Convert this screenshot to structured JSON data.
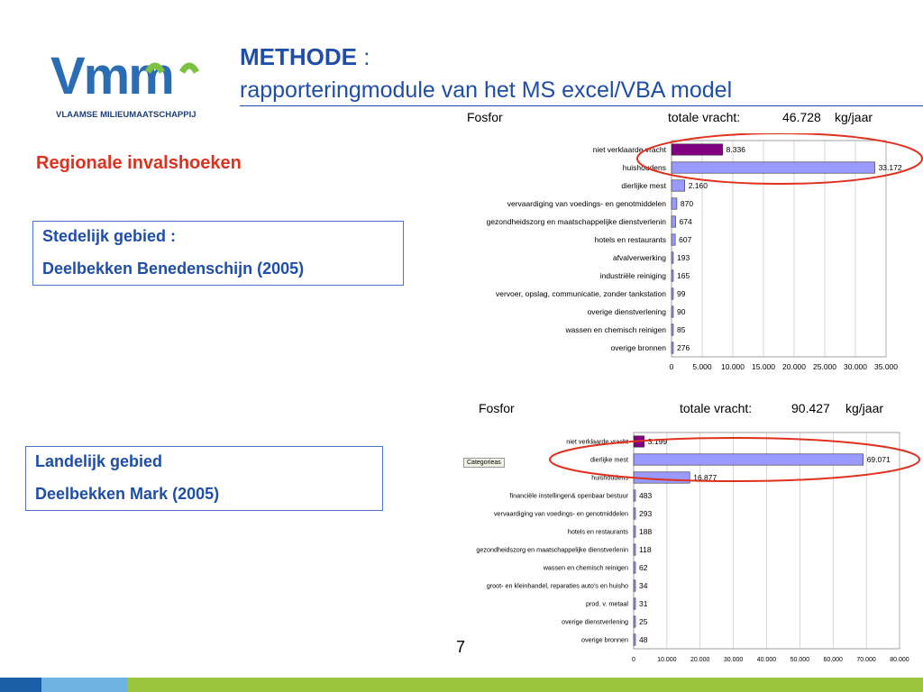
{
  "logo": {
    "wordmark": "Vmm",
    "subtitle": "VLAAMSE MILIEUMAATSCHAPPIJ"
  },
  "title": {
    "main": "METHODE",
    "colon": " :",
    "sub": "rapporteringmodule van het MS excel/VBA model"
  },
  "section_heading": "Regionale invalshoeken",
  "box_urban": {
    "line1": "Stedelijk gebied :",
    "line2": "Deelbekken Benedenschijn (2005)"
  },
  "box_rural": {
    "line1": "Landelijk gebied",
    "line2": " Deelbekken Mark (2005)"
  },
  "chart1_header": {
    "name": "Fosfor",
    "label": "totale vracht:",
    "value": "46.728",
    "unit": "kg/jaar"
  },
  "chart2_header": {
    "name": "Fosfor",
    "label": "totale vracht:",
    "value": "90.427",
    "unit": "kg/jaar"
  },
  "chart2_tag": "Categorieas",
  "page_number": "7",
  "colors": {
    "title_blue": "#1f4ea8",
    "heading_red": "#e0301e",
    "bar_default": "#9999ff",
    "bar_highlight": "#800080",
    "ellipse": "#e0301e"
  },
  "chart_data": [
    {
      "type": "bar",
      "orientation": "horizontal",
      "categories": [
        "niet verklaarde vracht",
        "huishoudens",
        "dierlijke mest",
        "vervaardiging van voedings- en genotmiddelen",
        "gezondheidszorg en maatschappelijke dienstverlenin",
        "hotels en restaurants",
        "afvalverwerking",
        "industriële reiniging",
        "vervoer, opslag, communicatie, zonder tankstation",
        "overige dienstverlening",
        "wassen en chemisch reinigen",
        "overige bronnen"
      ],
      "values": [
        8336,
        33172,
        2160,
        870,
        674,
        607,
        193,
        165,
        99,
        90,
        85,
        276
      ],
      "value_labels": [
        "8.336",
        "33.172",
        "2.160",
        "870",
        "674",
        "607",
        "193",
        "165",
        "99",
        "90",
        "85",
        "276"
      ],
      "xlim": [
        0,
        35000
      ],
      "x_ticks": [
        "0",
        "5.000",
        "10.000",
        "15.000",
        "20.000",
        "25.000",
        "30.000",
        "35.000"
      ],
      "highlight_index": 0,
      "circled_categories": [
        "niet verklaarde vracht",
        "huishoudens"
      ],
      "grid": true
    },
    {
      "type": "bar",
      "orientation": "horizontal",
      "categories": [
        "niet verklaarde vracht",
        "dierlijke mest",
        "huishoudens",
        "financiële instellingen& openbaar bestuur",
        "vervaardiging van voedings- en genotmiddelen",
        "hotels en restaurants",
        "gezondheidszorg en maatschappelijke dienstverlenin",
        "wassen en chemisch reinigen",
        "groot- en kleinhandel, reparaties auto's en huisho",
        "prod. v. metaal",
        "overige dienstverlening",
        "overige bronnen"
      ],
      "values": [
        3199,
        69071,
        16877,
        483,
        293,
        188,
        118,
        62,
        34,
        31,
        25,
        48
      ],
      "value_labels": [
        "3.199",
        "69.071",
        "16.877",
        "483",
        "293",
        "188",
        "118",
        "62",
        "34",
        "31",
        "25",
        "48"
      ],
      "xlim": [
        0,
        80000
      ],
      "x_ticks": [
        "0",
        "10.000",
        "20.000",
        "30.000",
        "40.000",
        "50.000",
        "60.000",
        "70.000",
        "80.000"
      ],
      "highlight_index": 0,
      "circled_categories": [
        "dierlijke mest"
      ],
      "grid": true
    }
  ]
}
